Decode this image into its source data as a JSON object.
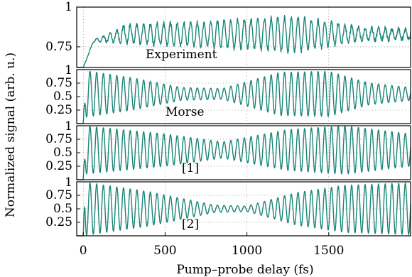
{
  "chart_data": [
    {
      "type": "line",
      "panel": "experiment",
      "label": "Experiment",
      "ylim": [
        0.62,
        1.0
      ],
      "yticks": [
        {
          "v": 1.0,
          "t": "1"
        },
        {
          "v": 0.75,
          "t": "0.75"
        }
      ],
      "signal": {
        "rise_end": 60,
        "base_start": 0.84,
        "mean_level": 0.83,
        "amplitude": [
          [
            0,
            0.02
          ],
          [
            300,
            0.06
          ],
          [
            800,
            0.08
          ],
          [
            1300,
            0.11
          ],
          [
            1700,
            0.04
          ],
          [
            2000,
            0.03
          ]
        ],
        "period": 41,
        "noise": 0.015
      }
    },
    {
      "type": "line",
      "panel": "morse",
      "label": "Morse",
      "ylim": [
        0.0,
        1.0
      ],
      "yticks": [
        {
          "v": 0.75,
          "t": "0.75"
        },
        {
          "v": 0.5,
          "t": "0.5"
        },
        {
          "v": 0.25,
          "t": "0.25"
        }
      ],
      "signal": {
        "rise_end": 15,
        "mean_level": 0.55,
        "amplitude": [
          [
            0,
            0.44
          ],
          [
            300,
            0.3
          ],
          [
            600,
            0.12
          ],
          [
            850,
            0.1
          ],
          [
            1200,
            0.4
          ],
          [
            1500,
            0.42
          ],
          [
            1750,
            0.2
          ],
          [
            2000,
            0.12
          ]
        ],
        "period": 41,
        "noise": 0.0
      }
    },
    {
      "type": "line",
      "panel": "ref1",
      "label": "[1]",
      "ylim": [
        0.0,
        1.0
      ],
      "yticks": [
        {
          "v": 0.75,
          "t": "0.75"
        },
        {
          "v": 0.5,
          "t": "0.5"
        },
        {
          "v": 0.25,
          "t": "0.25"
        }
      ],
      "signal": {
        "rise_end": 15,
        "mean_level": 0.55,
        "amplitude": [
          [
            0,
            0.45
          ],
          [
            500,
            0.3
          ],
          [
            850,
            0.15
          ],
          [
            1250,
            0.38
          ],
          [
            1600,
            0.45
          ],
          [
            2000,
            0.3
          ]
        ],
        "period": 41,
        "noise": 0.0
      }
    },
    {
      "type": "line",
      "panel": "ref2",
      "label": "[2]",
      "ylim": [
        0.0,
        1.0
      ],
      "yticks": [
        {
          "v": 0.75,
          "t": "0.75"
        },
        {
          "v": 0.5,
          "t": "0.5"
        },
        {
          "v": 0.25,
          "t": "0.25"
        }
      ],
      "signal": {
        "rise_end": 10,
        "mean_level": 0.5,
        "amplitude": [
          [
            0,
            0.5
          ],
          [
            400,
            0.32
          ],
          [
            800,
            0.07
          ],
          [
            1000,
            0.05
          ],
          [
            1300,
            0.3
          ],
          [
            1600,
            0.44
          ],
          [
            2000,
            0.48
          ]
        ],
        "period": 41,
        "noise": 0.0
      }
    }
  ],
  "x_axis": {
    "label": "Pump–probe delay (fs)",
    "xlim": [
      -40,
      2000
    ],
    "ticks": [
      {
        "v": 0,
        "t": "0"
      },
      {
        "v": 500,
        "t": "500"
      },
      {
        "v": 1000,
        "t": "1000"
      },
      {
        "v": 1500,
        "t": "1500"
      }
    ]
  },
  "y_axis": {
    "label": "Normalized signal (arb. u.)"
  },
  "colors": {
    "series": "#1a8577"
  }
}
